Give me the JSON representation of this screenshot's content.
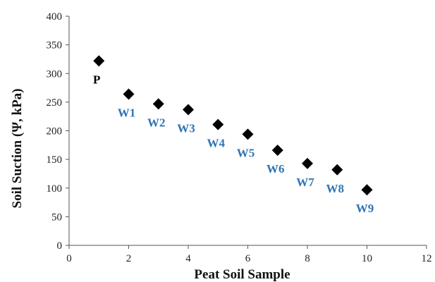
{
  "chart_data": {
    "type": "scatter",
    "title": "",
    "xlabel": "Peat Soil Sample",
    "ylabel": "Soil Suction (Ψ, kPa)",
    "xlim": [
      0,
      12
    ],
    "ylim": [
      0,
      400
    ],
    "x_ticks": [
      "0",
      "2",
      "4",
      "6",
      "8",
      "10",
      "12"
    ],
    "y_ticks": [
      "0",
      "50",
      "100",
      "150",
      "200",
      "250",
      "300",
      "350",
      "400"
    ],
    "grid": false,
    "marker": "diamond",
    "marker_color": "#000000",
    "points": [
      {
        "x": 1,
        "y": 322,
        "label": "P",
        "label_color": "#000000"
      },
      {
        "x": 2,
        "y": 264,
        "label": "W1",
        "label_color": "#2e75b6"
      },
      {
        "x": 3,
        "y": 247,
        "label": "W2",
        "label_color": "#2e75b6"
      },
      {
        "x": 4,
        "y": 237,
        "label": "W3",
        "label_color": "#2e75b6"
      },
      {
        "x": 5,
        "y": 211,
        "label": "W4",
        "label_color": "#2e75b6"
      },
      {
        "x": 6,
        "y": 194,
        "label": "W5",
        "label_color": "#2e75b6"
      },
      {
        "x": 7,
        "y": 166,
        "label": "W6",
        "label_color": "#2e75b6"
      },
      {
        "x": 8,
        "y": 143,
        "label": "W7",
        "label_color": "#2e75b6"
      },
      {
        "x": 9,
        "y": 132,
        "label": "W8",
        "label_color": "#2e75b6"
      },
      {
        "x": 10,
        "y": 97,
        "label": "W9",
        "label_color": "#2e75b6"
      }
    ]
  }
}
